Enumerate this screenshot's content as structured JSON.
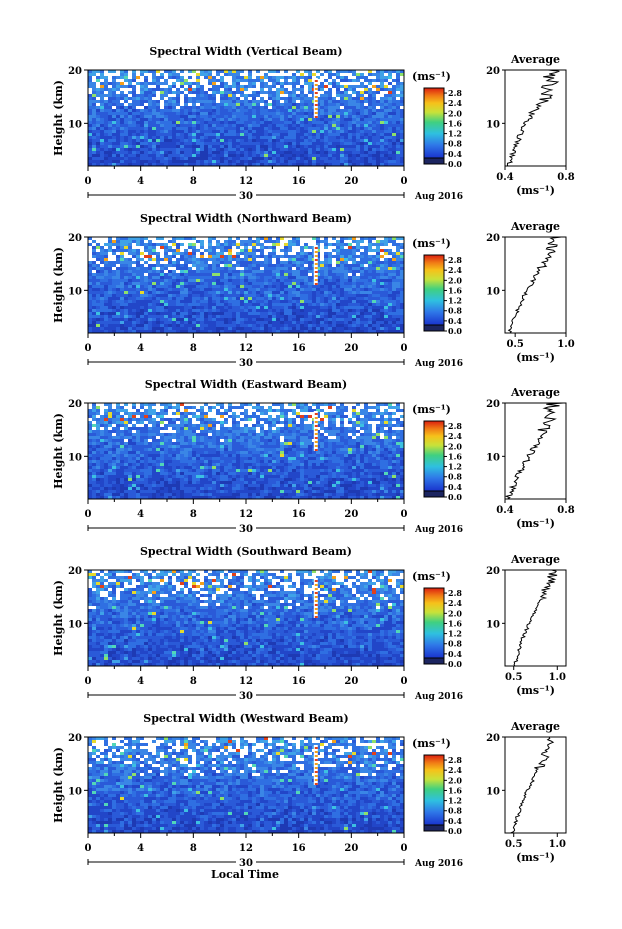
{
  "figure": {
    "xlabel": "Local Time",
    "date_label": "Aug 2016",
    "date_tick": "30",
    "colorbar_unit": "(ms⁻¹)",
    "profile_title": "Average",
    "profile_unit": "(ms⁻¹)"
  },
  "chart_data": [
    {
      "type": "heatmap",
      "title": "Spectral Width (Vertical Beam)",
      "xlabel": "Local Time",
      "ylabel": "Height (km)",
      "x_ticks": [
        "0",
        "4",
        "8",
        "12",
        "16",
        "20",
        "0"
      ],
      "y_ticks": [
        "10",
        "20"
      ],
      "xlim": [
        0,
        24
      ],
      "ylim": [
        2,
        20
      ],
      "colorbar": {
        "ticks": [
          "0.0",
          "0.4",
          "0.8",
          "1.2",
          "1.6",
          "2.0",
          "2.4",
          "2.8"
        ],
        "range": [
          0,
          3.0
        ]
      },
      "profile": {
        "title": "Average",
        "xlim": [
          0.4,
          0.8
        ],
        "x_ticks": [
          "0.4",
          "0.8"
        ],
        "y_ticks": [
          "10",
          "20"
        ],
        "heights": [
          2,
          4,
          6,
          8,
          10,
          12,
          14,
          16,
          18,
          20
        ],
        "values": [
          0.42,
          0.45,
          0.47,
          0.5,
          0.54,
          0.58,
          0.64,
          0.66,
          0.7,
          0.72
        ]
      }
    },
    {
      "type": "heatmap",
      "title": "Spectral Width (Northward Beam)",
      "xlabel": "Local Time",
      "ylabel": "Height (km)",
      "x_ticks": [
        "0",
        "4",
        "8",
        "12",
        "16",
        "20",
        "0"
      ],
      "y_ticks": [
        "10",
        "20"
      ],
      "xlim": [
        0,
        24
      ],
      "ylim": [
        2,
        20
      ],
      "colorbar": {
        "ticks": [
          "0.0",
          "0.4",
          "0.8",
          "1.2",
          "1.6",
          "2.0",
          "2.4",
          "2.8"
        ],
        "range": [
          0,
          3.0
        ]
      },
      "profile": {
        "title": "Average",
        "xlim": [
          0.4,
          1.0
        ],
        "x_ticks": [
          "0.5",
          "1.0"
        ],
        "y_ticks": [
          "10",
          "20"
        ],
        "heights": [
          2,
          4,
          6,
          8,
          10,
          12,
          14,
          16,
          18,
          20
        ],
        "values": [
          0.44,
          0.48,
          0.52,
          0.56,
          0.62,
          0.68,
          0.74,
          0.8,
          0.86,
          0.9
        ]
      }
    },
    {
      "type": "heatmap",
      "title": "Spectral Width (Eastward Beam)",
      "xlabel": "Local Time",
      "ylabel": "Height (km)",
      "x_ticks": [
        "0",
        "4",
        "8",
        "12",
        "16",
        "20",
        "0"
      ],
      "y_ticks": [
        "10",
        "20"
      ],
      "xlim": [
        0,
        24
      ],
      "ylim": [
        2,
        20
      ],
      "colorbar": {
        "ticks": [
          "0.0",
          "0.4",
          "0.8",
          "1.2",
          "1.6",
          "2.0",
          "2.4",
          "2.8"
        ],
        "range": [
          0,
          3.0
        ]
      },
      "profile": {
        "title": "Average",
        "xlim": [
          0.4,
          0.8
        ],
        "x_ticks": [
          "0.4",
          "0.8"
        ],
        "y_ticks": [
          "10",
          "20"
        ],
        "heights": [
          2,
          4,
          6,
          8,
          10,
          12,
          14,
          16,
          18,
          20
        ],
        "values": [
          0.42,
          0.45,
          0.48,
          0.52,
          0.56,
          0.6,
          0.64,
          0.67,
          0.7,
          0.73
        ]
      }
    },
    {
      "type": "heatmap",
      "title": "Spectral Width (Southward Beam)",
      "xlabel": "Local Time",
      "ylabel": "Height (km)",
      "x_ticks": [
        "0",
        "4",
        "8",
        "12",
        "16",
        "20",
        "0"
      ],
      "y_ticks": [
        "10",
        "20"
      ],
      "xlim": [
        0,
        24
      ],
      "ylim": [
        2,
        20
      ],
      "colorbar": {
        "ticks": [
          "0.0",
          "0.4",
          "0.8",
          "1.2",
          "1.6",
          "2.0",
          "2.4",
          "2.8"
        ],
        "range": [
          0,
          3.0
        ]
      },
      "profile": {
        "title": "Average",
        "xlim": [
          0.4,
          1.1
        ],
        "x_ticks": [
          "0.5",
          "1.0"
        ],
        "y_ticks": [
          "10",
          "20"
        ],
        "heights": [
          2,
          4,
          6,
          8,
          10,
          12,
          14,
          16,
          18,
          20
        ],
        "values": [
          0.5,
          0.55,
          0.58,
          0.62,
          0.68,
          0.74,
          0.8,
          0.86,
          0.92,
          0.96
        ]
      }
    },
    {
      "type": "heatmap",
      "title": "Spectral Width (Westward Beam)",
      "xlabel": "Local Time",
      "ylabel": "Height (km)",
      "x_ticks": [
        "0",
        "4",
        "8",
        "12",
        "16",
        "20",
        "0"
      ],
      "y_ticks": [
        "10",
        "20"
      ],
      "xlim": [
        0,
        24
      ],
      "ylim": [
        2,
        20
      ],
      "colorbar": {
        "ticks": [
          "0.0",
          "0.4",
          "0.8",
          "1.2",
          "1.6",
          "2.0",
          "2.4",
          "2.8"
        ],
        "range": [
          0,
          3.0
        ]
      },
      "profile": {
        "title": "Average",
        "xlim": [
          0.4,
          1.1
        ],
        "x_ticks": [
          "0.5",
          "1.0"
        ],
        "y_ticks": [
          "10",
          "20"
        ],
        "heights": [
          2,
          4,
          6,
          8,
          10,
          12,
          14,
          16,
          18,
          20
        ],
        "values": [
          0.48,
          0.52,
          0.56,
          0.6,
          0.66,
          0.72,
          0.78,
          0.84,
          0.9,
          0.94
        ]
      }
    }
  ]
}
